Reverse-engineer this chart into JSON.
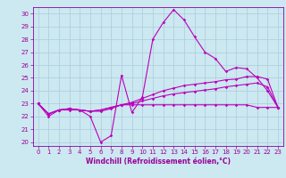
{
  "background_color": "#cce8f0",
  "grid_color": "#aaccdd",
  "line_color": "#bb00bb",
  "xlim": [
    -0.5,
    23.5
  ],
  "ylim": [
    19.7,
    30.5
  ],
  "xticks": [
    0,
    1,
    2,
    3,
    4,
    5,
    6,
    7,
    8,
    9,
    10,
    11,
    12,
    13,
    14,
    15,
    16,
    17,
    18,
    19,
    20,
    21,
    22,
    23
  ],
  "yticks": [
    20,
    21,
    22,
    23,
    24,
    25,
    26,
    27,
    28,
    29,
    30
  ],
  "line1_y": [
    23.0,
    22.0,
    22.5,
    22.5,
    22.5,
    22.0,
    20.0,
    20.5,
    25.2,
    22.3,
    23.5,
    28.0,
    29.3,
    30.3,
    29.5,
    28.2,
    27.0,
    26.5,
    25.5,
    25.8,
    25.7,
    25.0,
    24.0,
    22.7
  ],
  "line2_y": [
    23.0,
    22.2,
    22.5,
    22.6,
    22.5,
    22.4,
    22.4,
    22.6,
    22.9,
    23.1,
    23.4,
    23.7,
    24.0,
    24.2,
    24.4,
    24.5,
    24.6,
    24.7,
    24.85,
    24.9,
    25.1,
    25.1,
    24.9,
    22.7
  ],
  "line3_y": [
    23.0,
    22.2,
    22.5,
    22.6,
    22.5,
    22.4,
    22.5,
    22.7,
    22.9,
    23.0,
    23.2,
    23.4,
    23.6,
    23.75,
    23.85,
    23.95,
    24.05,
    24.15,
    24.3,
    24.4,
    24.5,
    24.6,
    24.3,
    22.7
  ],
  "line4_y": [
    23.0,
    22.2,
    22.5,
    22.6,
    22.5,
    22.4,
    22.5,
    22.7,
    22.9,
    22.9,
    22.9,
    22.9,
    22.9,
    22.9,
    22.9,
    22.9,
    22.9,
    22.9,
    22.9,
    22.9,
    22.9,
    22.7,
    22.7,
    22.7
  ],
  "xlabel": "Windchill (Refroidissement éolien,°C)",
  "marker": "D",
  "marker_size": 1.8,
  "line_width": 0.8,
  "tick_fontsize": 5.0,
  "label_fontsize": 5.5,
  "tick_color": "#990099",
  "spine_color": "#8800aa"
}
